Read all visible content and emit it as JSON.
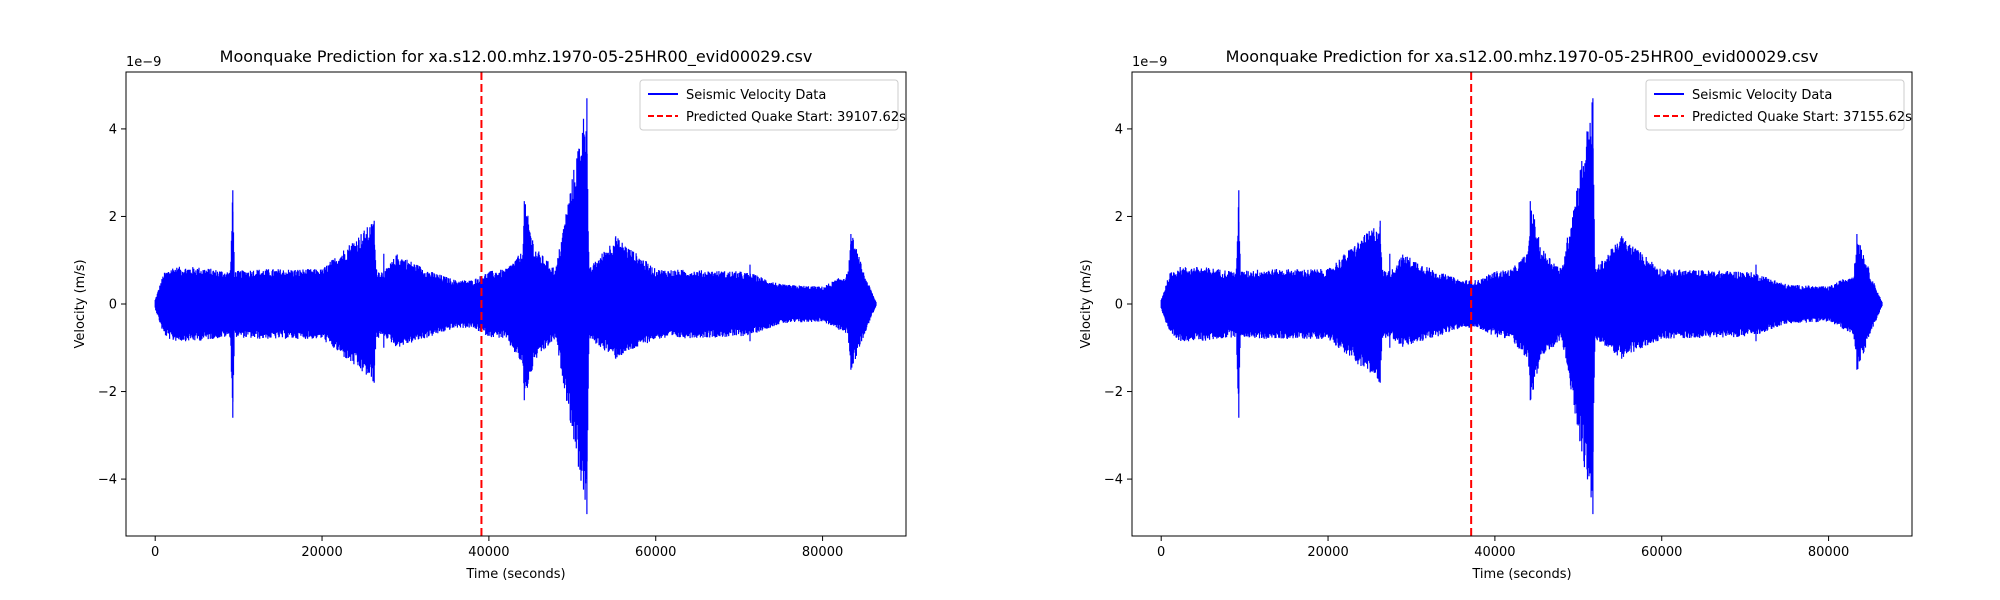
{
  "chart_data": [
    {
      "type": "line",
      "title": "Moonquake Prediction for xa.s12.00.mhz.1970-05-25HR00_evid00029.csv",
      "xlabel": "Time (seconds)",
      "ylabel": "Velocity (m/s)",
      "y_offset_text": "1e−9",
      "xlim": [
        -3500,
        90000
      ],
      "ylim": [
        -5.3,
        5.3
      ],
      "xticks": [
        0,
        20000,
        40000,
        60000,
        80000
      ],
      "xtick_labels": [
        "0",
        "20000",
        "40000",
        "60000",
        "80000"
      ],
      "yticks": [
        -4,
        -2,
        0,
        2,
        4
      ],
      "ytick_labels": [
        "−4",
        "−2",
        "0",
        "2",
        "4"
      ],
      "grid": false,
      "legend_position": "top-right",
      "series": [
        {
          "name": "Seismic Velocity Data",
          "color": "#0000ff",
          "style": "solid",
          "x_range": [
            0,
            86400
          ],
          "envelope_x": [
            0,
            1000,
            2000,
            5000,
            9000,
            9300,
            9500,
            12000,
            20000,
            26200,
            26500,
            27500,
            29000,
            33000,
            36000,
            38000,
            40000,
            42000,
            44000,
            44300,
            45500,
            48000,
            51700,
            52000,
            55200,
            60000,
            70000,
            71500,
            75000,
            80000,
            83000,
            83500,
            85000,
            86400
          ],
          "envelope_upper": [
            0.1,
            0.7,
            0.85,
            0.85,
            0.75,
            2.6,
            0.75,
            0.8,
            0.8,
            1.9,
            0.8,
            0.75,
            1.15,
            0.75,
            0.55,
            0.55,
            0.75,
            0.8,
            1.2,
            2.35,
            1.3,
            0.8,
            4.7,
            0.8,
            1.55,
            0.8,
            0.75,
            0.7,
            0.45,
            0.4,
            0.7,
            1.6,
            0.7,
            0.05
          ],
          "envelope_lower": [
            -0.1,
            -0.7,
            -0.85,
            -0.85,
            -0.75,
            -2.6,
            -0.75,
            -0.8,
            -0.8,
            -1.8,
            -0.8,
            -0.75,
            -1.0,
            -0.75,
            -0.55,
            -0.55,
            -0.75,
            -0.8,
            -1.4,
            -2.2,
            -1.3,
            -0.8,
            -4.8,
            -0.8,
            -1.25,
            -0.8,
            -0.75,
            -0.7,
            -0.45,
            -0.4,
            -0.7,
            -1.5,
            -0.7,
            -0.05
          ]
        },
        {
          "name": "Predicted Quake Start: 39107.62s",
          "color": "#ff0000",
          "style": "dashed",
          "x": 39107.62
        }
      ]
    },
    {
      "type": "line",
      "title": "Moonquake Prediction for xa.s12.00.mhz.1970-05-25HR00_evid00029.csv",
      "xlabel": "Time (seconds)",
      "ylabel": "Velocity (m/s)",
      "y_offset_text": "1e−9",
      "xlim": [
        -3500,
        90000
      ],
      "ylim": [
        -5.3,
        5.3
      ],
      "xticks": [
        0,
        20000,
        40000,
        60000,
        80000
      ],
      "xtick_labels": [
        "0",
        "20000",
        "40000",
        "60000",
        "80000"
      ],
      "yticks": [
        -4,
        -2,
        0,
        2,
        4
      ],
      "ytick_labels": [
        "−4",
        "−2",
        "0",
        "2",
        "4"
      ],
      "grid": false,
      "legend_position": "top-right",
      "series": [
        {
          "name": "Seismic Velocity Data",
          "color": "#0000ff",
          "style": "solid",
          "x_range": [
            0,
            86400
          ],
          "envelope_x": [
            0,
            1000,
            2000,
            5000,
            9000,
            9300,
            9500,
            12000,
            20000,
            26200,
            26500,
            27500,
            29000,
            33000,
            36000,
            38000,
            40000,
            42000,
            44000,
            44300,
            45500,
            48000,
            51700,
            52000,
            55200,
            60000,
            70000,
            71500,
            75000,
            80000,
            83000,
            83500,
            85000,
            86400
          ],
          "envelope_upper": [
            0.1,
            0.7,
            0.85,
            0.85,
            0.75,
            2.6,
            0.75,
            0.8,
            0.8,
            1.9,
            0.8,
            0.75,
            1.15,
            0.75,
            0.55,
            0.55,
            0.75,
            0.8,
            1.2,
            2.35,
            1.3,
            0.8,
            4.7,
            0.8,
            1.55,
            0.8,
            0.75,
            0.7,
            0.45,
            0.4,
            0.7,
            1.6,
            0.7,
            0.05
          ],
          "envelope_lower": [
            -0.1,
            -0.7,
            -0.85,
            -0.85,
            -0.75,
            -2.6,
            -0.75,
            -0.8,
            -0.8,
            -1.8,
            -0.8,
            -0.75,
            -1.0,
            -0.75,
            -0.55,
            -0.55,
            -0.75,
            -0.8,
            -1.4,
            -2.2,
            -1.3,
            -0.8,
            -4.8,
            -0.8,
            -1.25,
            -0.8,
            -0.75,
            -0.7,
            -0.45,
            -0.4,
            -0.7,
            -1.5,
            -0.7,
            -0.05
          ]
        },
        {
          "name": "Predicted Quake Start: 37155.62s",
          "color": "#ff0000",
          "style": "dashed",
          "x": 37155.62
        }
      ]
    }
  ]
}
